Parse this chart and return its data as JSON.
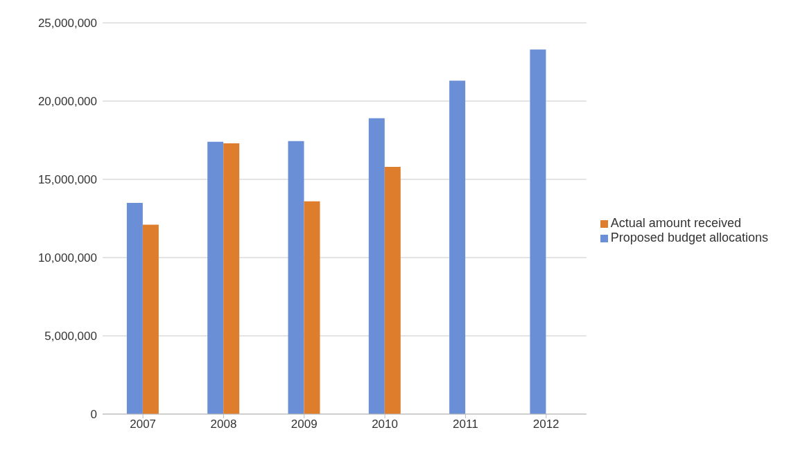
{
  "chart_data": {
    "type": "bar",
    "categories": [
      "2007",
      "2008",
      "2009",
      "2010",
      "2011",
      "2012"
    ],
    "series": [
      {
        "name": "Proposed budget allocations",
        "color": "#6a8fd6",
        "values": [
          13500000,
          17400000,
          17450000,
          18900000,
          21300000,
          23300000
        ]
      },
      {
        "name": "Actual amount received",
        "color": "#de7d2c",
        "values": [
          12100000,
          17300000,
          13600000,
          15800000,
          null,
          null
        ]
      }
    ],
    "ylim": [
      0,
      25000000
    ],
    "yticks": [
      {
        "value": 0,
        "label": "0"
      },
      {
        "value": 5000000,
        "label": "5,000,000"
      },
      {
        "value": 10000000,
        "label": "10,000,000"
      },
      {
        "value": 15000000,
        "label": "15,000,000"
      },
      {
        "value": 20000000,
        "label": "20,000,000"
      },
      {
        "value": 25000000,
        "label": "25,000,000"
      }
    ],
    "grid": "y",
    "legend": "right"
  }
}
